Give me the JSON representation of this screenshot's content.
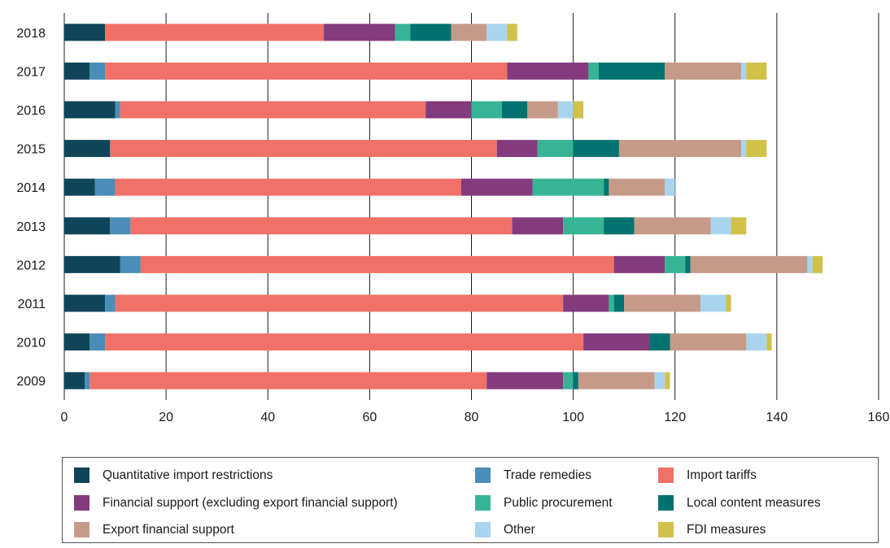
{
  "chart_data": {
    "type": "bar",
    "orientation": "horizontal",
    "stacked": true,
    "categories": [
      "2018",
      "2017",
      "2016",
      "2015",
      "2014",
      "2013",
      "2012",
      "2011",
      "2010",
      "2009"
    ],
    "xlim": [
      0,
      160
    ],
    "xticks": [
      0,
      20,
      40,
      60,
      80,
      100,
      120,
      140,
      160
    ],
    "grid": "vertical",
    "legend_position": "bottom",
    "series": [
      {
        "name": "Quantitative import restrictions",
        "color": "#0f4459",
        "values": [
          8,
          5,
          10,
          9,
          6,
          9,
          11,
          8,
          5,
          4
        ]
      },
      {
        "name": "Trade remedies",
        "color": "#4a8db8",
        "values": [
          0,
          3,
          1,
          0,
          4,
          4,
          4,
          2,
          3,
          1
        ]
      },
      {
        "name": "Import tariffs",
        "color": "#ef7168",
        "values": [
          43,
          79,
          60,
          76,
          68,
          75,
          93,
          88,
          94,
          78
        ]
      },
      {
        "name": "Financial support (excluding export financial support)",
        "color": "#843b7e",
        "values": [
          14,
          16,
          9,
          8,
          14,
          10,
          10,
          9,
          13,
          15
        ]
      },
      {
        "name": "Public procurement",
        "color": "#37b496",
        "values": [
          3,
          2,
          6,
          7,
          14,
          8,
          4,
          1,
          0,
          2
        ]
      },
      {
        "name": "Local content measures",
        "color": "#00726f",
        "values": [
          8,
          13,
          5,
          9,
          1,
          6,
          1,
          2,
          4,
          1
        ]
      },
      {
        "name": "Export financial support",
        "color": "#c69a89",
        "values": [
          7,
          15,
          6,
          24,
          11,
          15,
          23,
          15,
          15,
          15
        ]
      },
      {
        "name": "Other",
        "color": "#a9d4ee",
        "values": [
          4,
          1,
          3,
          1,
          2,
          4,
          1,
          5,
          4,
          2
        ]
      },
      {
        "name": "FDI measures",
        "color": "#d1c14b",
        "values": [
          2,
          4,
          2,
          4,
          0,
          3,
          2,
          1,
          1,
          1
        ]
      }
    ]
  },
  "legend": [
    {
      "label": "Quantitative import restrictions",
      "color": "#0f4459"
    },
    {
      "label": "Trade remedies",
      "color": "#4a8db8"
    },
    {
      "label": "Import tariffs",
      "color": "#ef7168"
    },
    {
      "label": "Financial support (excluding export financial support)",
      "color": "#843b7e"
    },
    {
      "label": "Public procurement",
      "color": "#37b496"
    },
    {
      "label": "Local content measures",
      "color": "#00726f"
    },
    {
      "label": "Export financial support",
      "color": "#c69a89"
    },
    {
      "label": "Other",
      "color": "#a9d4ee"
    },
    {
      "label": "FDI measures",
      "color": "#d1c14b"
    }
  ]
}
